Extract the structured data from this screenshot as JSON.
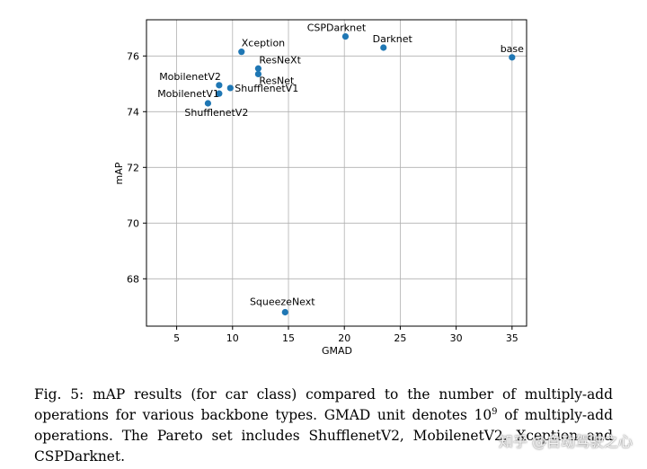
{
  "chart_data": {
    "type": "scatter",
    "xlabel": "GMAD",
    "ylabel": "mAP",
    "xlim": [
      2.3,
      36.3
    ],
    "ylim": [
      66.3,
      77.3
    ],
    "xticks": [
      5,
      10,
      15,
      20,
      25,
      30,
      35
    ],
    "yticks": [
      68,
      70,
      72,
      74,
      76
    ],
    "grid": true,
    "marker_color": "#1f77b4",
    "points": [
      {
        "label": "Xception",
        "x": 10.8,
        "y": 76.15,
        "anchor": "start",
        "dx": 0,
        "dy": -6
      },
      {
        "label": "CSPDarknet",
        "x": 20.1,
        "y": 76.7,
        "anchor": "middle",
        "dx": -10,
        "dy": -6
      },
      {
        "label": "Darknet",
        "x": 23.5,
        "y": 76.3,
        "anchor": "middle",
        "dx": 10,
        "dy": -6
      },
      {
        "label": "base",
        "x": 35.0,
        "y": 75.95,
        "anchor": "middle",
        "dx": 0,
        "dy": -6
      },
      {
        "label": "ResNeXt",
        "x": 12.3,
        "y": 75.55,
        "anchor": "start",
        "dx": 1,
        "dy": -6
      },
      {
        "label": "ResNet",
        "x": 12.3,
        "y": 75.35,
        "anchor": "start",
        "dx": 1,
        "dy": 11
      },
      {
        "label": "MobilenetV2",
        "x": 8.8,
        "y": 74.95,
        "anchor": "end",
        "dx": 2,
        "dy": -6
      },
      {
        "label": "MobilenetV1",
        "x": 8.8,
        "y": 74.65,
        "anchor": "end",
        "dx": 0,
        "dy": 4
      },
      {
        "label": "ShufflenetV1",
        "x": 9.8,
        "y": 74.85,
        "anchor": "start",
        "dx": 5,
        "dy": 4
      },
      {
        "label": "ShufflenetV2",
        "x": 7.8,
        "y": 74.3,
        "anchor": "start",
        "dx": -26,
        "dy": 14
      },
      {
        "label": "SqueezeNext",
        "x": 14.7,
        "y": 66.8,
        "anchor": "middle",
        "dx": -3,
        "dy": -8
      }
    ]
  },
  "caption": {
    "prefix": "Fig. 5: mAP results (for car class) compared to the number of multiply-add operations for various backbone types. GMAD unit denotes 10",
    "superscript": "9",
    "suffix": " of multiply-add operations. The Pareto set includes ShufflenetV2, MobilenetV2, Xception and CSPDarknet."
  },
  "watermark": "知乎 @自动驾驶之心"
}
